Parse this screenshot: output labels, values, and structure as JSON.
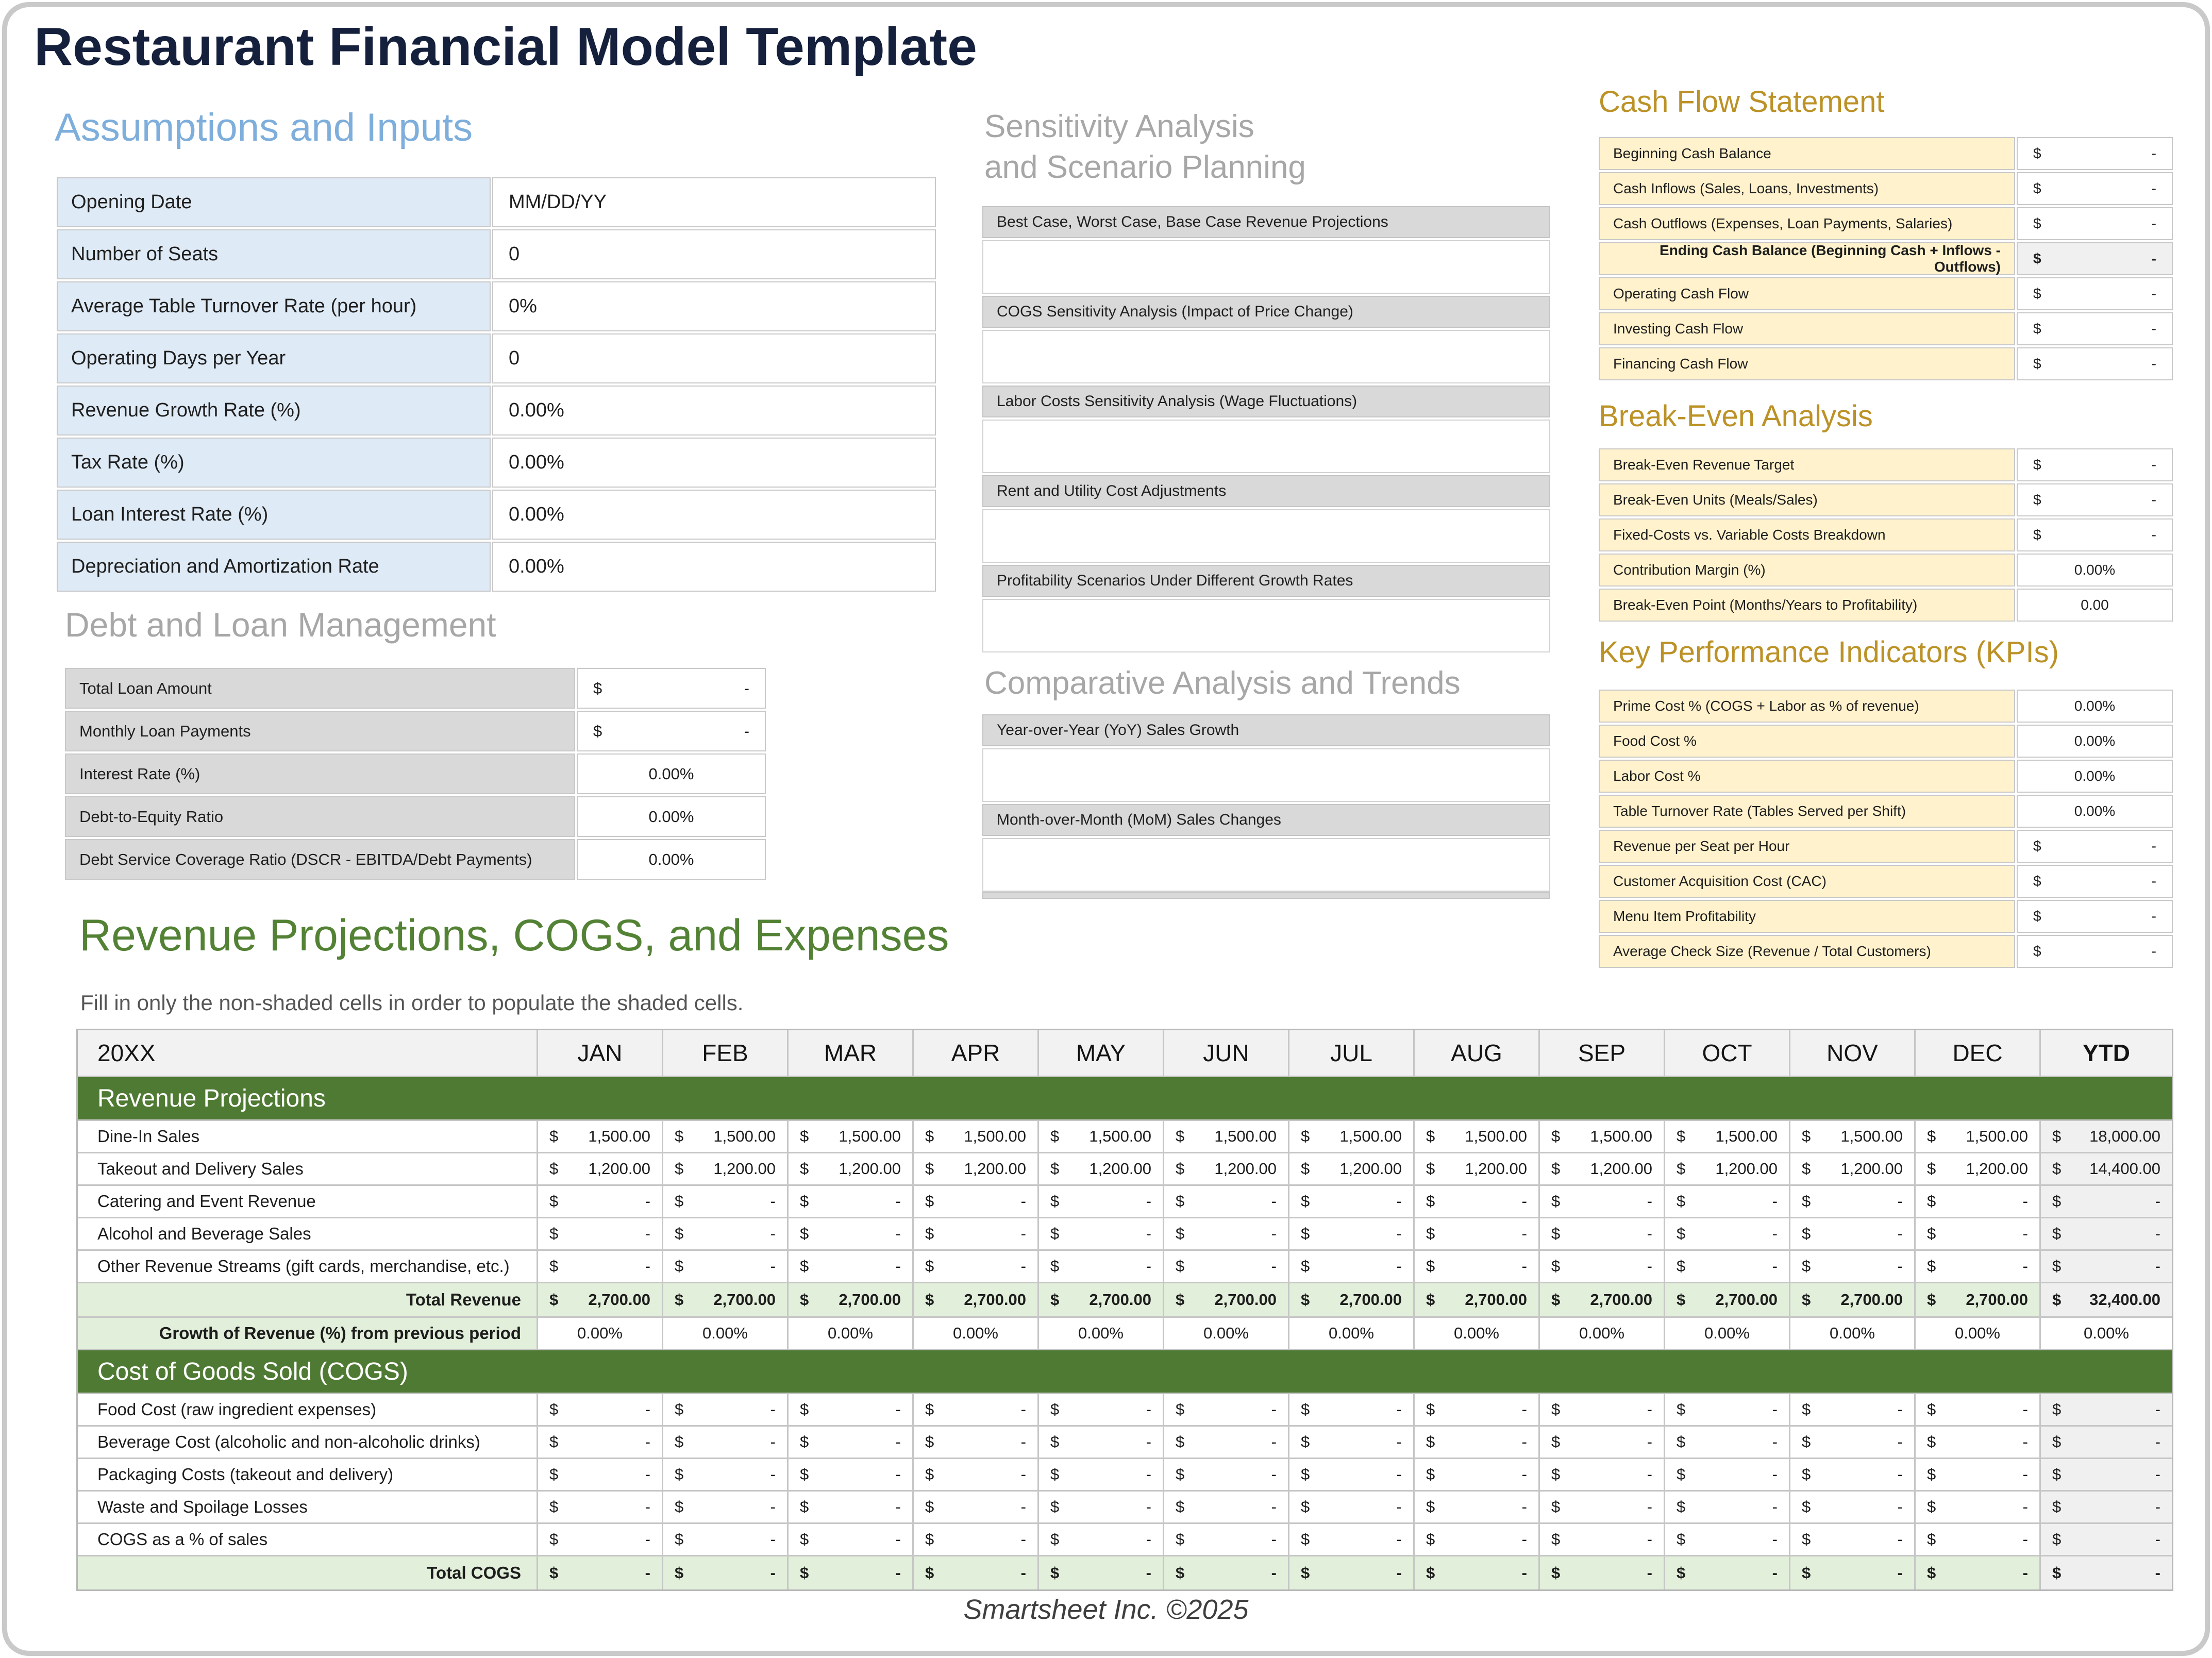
{
  "title": "Restaurant Financial Model Template",
  "footer": "Smartsheet Inc. ©2025",
  "colors": {
    "title_navy": "#15203C",
    "heading_blue": "#7EAEDB",
    "heading_gray": "#A7A7A7",
    "heading_gold": "#BC9227",
    "heading_green": "#538235",
    "banner_green": "#4F7A33",
    "total_row_green": "#E2EFDA",
    "label_cream": "#FFF2CC",
    "label_blue": "#DEEAF6",
    "label_gray": "#D9D9D9",
    "shaded_cell_gray": "#F0F0F0"
  },
  "assumptions": {
    "heading": "Assumptions and Inputs",
    "rows": [
      {
        "label": "Opening Date",
        "format": "text",
        "value": "MM/DD/YY"
      },
      {
        "label": "Number of Seats",
        "format": "text",
        "value": "0"
      },
      {
        "label": "Average Table Turnover Rate (per hour)",
        "format": "text",
        "value": "0%"
      },
      {
        "label": "Operating Days per Year",
        "format": "text",
        "value": "0"
      },
      {
        "label": "Revenue Growth Rate (%)",
        "format": "text",
        "value": "0.00%"
      },
      {
        "label": "Tax Rate (%)",
        "format": "text",
        "value": "0.00%"
      },
      {
        "label": "Loan Interest Rate (%)",
        "format": "text",
        "value": "0.00%"
      },
      {
        "label": "Depreciation and Amortization Rate",
        "format": "text",
        "value": "0.00%"
      }
    ]
  },
  "debt": {
    "heading": "Debt and Loan Management",
    "rows": [
      {
        "label": "Total Loan Amount",
        "format": "currency",
        "value": "-"
      },
      {
        "label": "Monthly Loan Payments",
        "format": "currency",
        "value": "-"
      },
      {
        "label": "Interest Rate (%)",
        "format": "percent",
        "value": "0.00%"
      },
      {
        "label": "Debt-to-Equity Ratio",
        "format": "percent",
        "value": "0.00%"
      },
      {
        "label": "Debt Service Coverage Ratio (DSCR - EBITDA/Debt Payments)",
        "format": "percent",
        "value": "0.00%"
      }
    ]
  },
  "sensitivity": {
    "heading_line1": "Sensitivity Analysis",
    "heading_line2": "and Scenario Planning",
    "items": [
      "Best Case, Worst Case, Base Case Revenue Projections",
      "COGS Sensitivity Analysis (Impact of Price Change)",
      "Labor Costs Sensitivity Analysis (Wage Fluctuations)",
      "Rent and Utility Cost Adjustments",
      "Profitability Scenarios Under Different Growth Rates"
    ]
  },
  "comparative": {
    "heading": "Comparative Analysis and Trends",
    "items": [
      "Year-over-Year (YoY) Sales Growth",
      "Month-over-Month (MoM) Sales Changes"
    ]
  },
  "cash_flow": {
    "heading": "Cash Flow Statement",
    "rows": [
      {
        "label": "Beginning Cash Balance",
        "format": "currency",
        "value": "-"
      },
      {
        "label": "Cash Inflows (Sales, Loans, Investments)",
        "format": "currency",
        "value": "-"
      },
      {
        "label": "Cash Outflows (Expenses, Loan Payments, Salaries)",
        "format": "currency",
        "value": "-"
      },
      {
        "label": "Ending Cash Balance (Beginning Cash + Inflows - Outflows)",
        "format": "currency",
        "value": "-",
        "bold": true,
        "shaded": true
      },
      {
        "label": "Operating Cash Flow",
        "format": "currency",
        "value": "-"
      },
      {
        "label": "Investing Cash Flow",
        "format": "currency",
        "value": "-"
      },
      {
        "label": "Financing Cash Flow",
        "format": "currency",
        "value": "-"
      }
    ]
  },
  "break_even": {
    "heading": "Break-Even Analysis",
    "rows": [
      {
        "label": "Break-Even Revenue Target",
        "format": "currency",
        "value": "-"
      },
      {
        "label": "Break-Even Units (Meals/Sales)",
        "format": "currency",
        "value": "-"
      },
      {
        "label": "Fixed-Costs vs. Variable Costs Breakdown",
        "format": "currency",
        "value": "-"
      },
      {
        "label": "Contribution Margin (%)",
        "format": "percent",
        "value": "0.00%"
      },
      {
        "label": "Break-Even Point (Months/Years to Profitability)",
        "format": "number",
        "value": "0.00"
      }
    ]
  },
  "kpi": {
    "heading": "Key Performance Indicators (KPIs)",
    "rows": [
      {
        "label": "Prime Cost % (COGS + Labor as % of revenue)",
        "format": "percent",
        "value": "0.00%"
      },
      {
        "label": "Food Cost %",
        "format": "percent",
        "value": "0.00%"
      },
      {
        "label": "Labor Cost %",
        "format": "percent",
        "value": "0.00%"
      },
      {
        "label": "Table Turnover Rate (Tables Served per Shift)",
        "format": "percent",
        "value": "0.00%"
      },
      {
        "label": "Revenue per Seat per Hour",
        "format": "currency",
        "value": "-"
      },
      {
        "label": "Customer Acquisition Cost (CAC)",
        "format": "currency",
        "value": "-"
      },
      {
        "label": "Menu Item Profitability",
        "format": "currency",
        "value": "-"
      },
      {
        "label": "Average Check Size (Revenue / Total Customers)",
        "format": "currency",
        "value": "-"
      }
    ]
  },
  "projections": {
    "heading": "Revenue Projections, COGS, and Expenses",
    "subtitle": "Fill in only the non-shaded cells in order to populate the shaded cells.",
    "year_label": "20XX",
    "month_labels": [
      "JAN",
      "FEB",
      "MAR",
      "APR",
      "MAY",
      "JUN",
      "JUL",
      "AUG",
      "SEP",
      "OCT",
      "NOV",
      "DEC"
    ],
    "ytd_label": "YTD",
    "currency_symbol": "$",
    "sections": [
      {
        "banner": "Revenue Projections",
        "rows": [
          {
            "label": "Dine-In Sales",
            "values": [
              "1,500.00",
              "1,500.00",
              "1,500.00",
              "1,500.00",
              "1,500.00",
              "1,500.00",
              "1,500.00",
              "1,500.00",
              "1,500.00",
              "1,500.00",
              "1,500.00",
              "1,500.00"
            ],
            "ytd": "18,000.00"
          },
          {
            "label": "Takeout and Delivery Sales",
            "values": [
              "1,200.00",
              "1,200.00",
              "1,200.00",
              "1,200.00",
              "1,200.00",
              "1,200.00",
              "1,200.00",
              "1,200.00",
              "1,200.00",
              "1,200.00",
              "1,200.00",
              "1,200.00"
            ],
            "ytd": "14,400.00"
          },
          {
            "label": "Catering and Event Revenue",
            "values": [
              "-",
              "-",
              "-",
              "-",
              "-",
              "-",
              "-",
              "-",
              "-",
              "-",
              "-",
              "-"
            ],
            "ytd": "-"
          },
          {
            "label": "Alcohol and Beverage Sales",
            "values": [
              "-",
              "-",
              "-",
              "-",
              "-",
              "-",
              "-",
              "-",
              "-",
              "-",
              "-",
              "-"
            ],
            "ytd": "-"
          },
          {
            "label": "Other Revenue Streams (gift cards, merchandise, etc.)",
            "values": [
              "-",
              "-",
              "-",
              "-",
              "-",
              "-",
              "-",
              "-",
              "-",
              "-",
              "-",
              "-"
            ],
            "ytd": "-"
          }
        ],
        "total_row": {
          "label": "Total Revenue",
          "values": [
            "2,700.00",
            "2,700.00",
            "2,700.00",
            "2,700.00",
            "2,700.00",
            "2,700.00",
            "2,700.00",
            "2,700.00",
            "2,700.00",
            "2,700.00",
            "2,700.00",
            "2,700.00"
          ],
          "ytd": "32,400.00"
        },
        "growth_row": {
          "label": "Growth of Revenue (%) from previous period",
          "values": [
            "0.00%",
            "0.00%",
            "0.00%",
            "0.00%",
            "0.00%",
            "0.00%",
            "0.00%",
            "0.00%",
            "0.00%",
            "0.00%",
            "0.00%",
            "0.00%"
          ],
          "ytd": "0.00%"
        }
      },
      {
        "banner": "Cost of Goods Sold (COGS)",
        "rows": [
          {
            "label": "Food Cost (raw ingredient expenses)",
            "values": [
              "-",
              "-",
              "-",
              "-",
              "-",
              "-",
              "-",
              "-",
              "-",
              "-",
              "-",
              "-"
            ],
            "ytd": "-"
          },
          {
            "label": "Beverage Cost (alcoholic and non-alcoholic drinks)",
            "values": [
              "-",
              "-",
              "-",
              "-",
              "-",
              "-",
              "-",
              "-",
              "-",
              "-",
              "-",
              "-"
            ],
            "ytd": "-"
          },
          {
            "label": "Packaging Costs (takeout and delivery)",
            "values": [
              "-",
              "-",
              "-",
              "-",
              "-",
              "-",
              "-",
              "-",
              "-",
              "-",
              "-",
              "-"
            ],
            "ytd": "-"
          },
          {
            "label": "Waste and Spoilage Losses",
            "values": [
              "-",
              "-",
              "-",
              "-",
              "-",
              "-",
              "-",
              "-",
              "-",
              "-",
              "-",
              "-"
            ],
            "ytd": "-"
          },
          {
            "label": "COGS as a % of sales",
            "values": [
              "-",
              "-",
              "-",
              "-",
              "-",
              "-",
              "-",
              "-",
              "-",
              "-",
              "-",
              "-"
            ],
            "ytd": "-"
          }
        ],
        "total_row": {
          "label": "Total COGS",
          "values": [
            "-",
            "-",
            "-",
            "-",
            "-",
            "-",
            "-",
            "-",
            "-",
            "-",
            "-",
            "-"
          ],
          "ytd": "-"
        }
      }
    ]
  }
}
